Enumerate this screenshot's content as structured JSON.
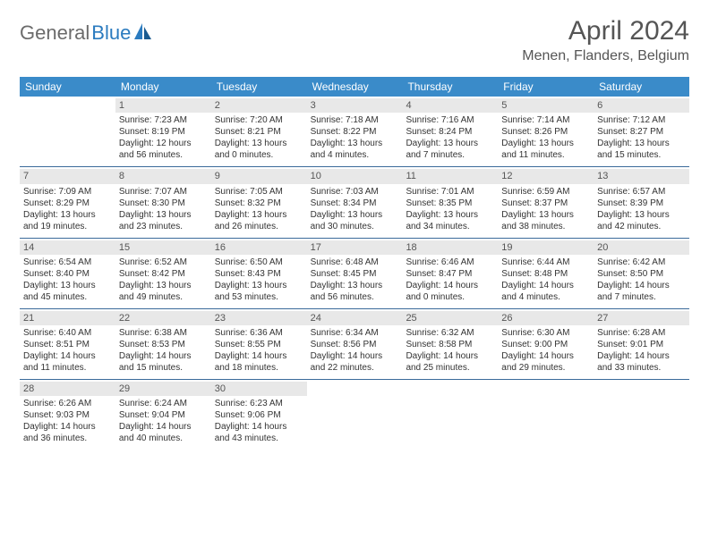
{
  "logo": {
    "text1": "General",
    "text2": "Blue"
  },
  "title": "April 2024",
  "location": "Menen, Flanders, Belgium",
  "colors": {
    "header_bg": "#3a8bc9",
    "header_text": "#ffffff",
    "border": "#3a6a9a",
    "daynum_bg": "#e8e8e8",
    "body_text": "#333333",
    "logo_gray": "#6b6b6b",
    "logo_blue": "#2b7bbf"
  },
  "typography": {
    "title_fontsize": 30,
    "location_fontsize": 16,
    "dayheader_fontsize": 12,
    "cell_fontsize": 10
  },
  "day_labels": [
    "Sunday",
    "Monday",
    "Tuesday",
    "Wednesday",
    "Thursday",
    "Friday",
    "Saturday"
  ],
  "weeks": [
    [
      {
        "n": "",
        "sr": "",
        "ss": "",
        "dl1": "",
        "dl2": "",
        "empty": true
      },
      {
        "n": "1",
        "sr": "Sunrise: 7:23 AM",
        "ss": "Sunset: 8:19 PM",
        "dl1": "Daylight: 12 hours",
        "dl2": "and 56 minutes."
      },
      {
        "n": "2",
        "sr": "Sunrise: 7:20 AM",
        "ss": "Sunset: 8:21 PM",
        "dl1": "Daylight: 13 hours",
        "dl2": "and 0 minutes."
      },
      {
        "n": "3",
        "sr": "Sunrise: 7:18 AM",
        "ss": "Sunset: 8:22 PM",
        "dl1": "Daylight: 13 hours",
        "dl2": "and 4 minutes."
      },
      {
        "n": "4",
        "sr": "Sunrise: 7:16 AM",
        "ss": "Sunset: 8:24 PM",
        "dl1": "Daylight: 13 hours",
        "dl2": "and 7 minutes."
      },
      {
        "n": "5",
        "sr": "Sunrise: 7:14 AM",
        "ss": "Sunset: 8:26 PM",
        "dl1": "Daylight: 13 hours",
        "dl2": "and 11 minutes."
      },
      {
        "n": "6",
        "sr": "Sunrise: 7:12 AM",
        "ss": "Sunset: 8:27 PM",
        "dl1": "Daylight: 13 hours",
        "dl2": "and 15 minutes."
      }
    ],
    [
      {
        "n": "7",
        "sr": "Sunrise: 7:09 AM",
        "ss": "Sunset: 8:29 PM",
        "dl1": "Daylight: 13 hours",
        "dl2": "and 19 minutes."
      },
      {
        "n": "8",
        "sr": "Sunrise: 7:07 AM",
        "ss": "Sunset: 8:30 PM",
        "dl1": "Daylight: 13 hours",
        "dl2": "and 23 minutes."
      },
      {
        "n": "9",
        "sr": "Sunrise: 7:05 AM",
        "ss": "Sunset: 8:32 PM",
        "dl1": "Daylight: 13 hours",
        "dl2": "and 26 minutes."
      },
      {
        "n": "10",
        "sr": "Sunrise: 7:03 AM",
        "ss": "Sunset: 8:34 PM",
        "dl1": "Daylight: 13 hours",
        "dl2": "and 30 minutes."
      },
      {
        "n": "11",
        "sr": "Sunrise: 7:01 AM",
        "ss": "Sunset: 8:35 PM",
        "dl1": "Daylight: 13 hours",
        "dl2": "and 34 minutes."
      },
      {
        "n": "12",
        "sr": "Sunrise: 6:59 AM",
        "ss": "Sunset: 8:37 PM",
        "dl1": "Daylight: 13 hours",
        "dl2": "and 38 minutes."
      },
      {
        "n": "13",
        "sr": "Sunrise: 6:57 AM",
        "ss": "Sunset: 8:39 PM",
        "dl1": "Daylight: 13 hours",
        "dl2": "and 42 minutes."
      }
    ],
    [
      {
        "n": "14",
        "sr": "Sunrise: 6:54 AM",
        "ss": "Sunset: 8:40 PM",
        "dl1": "Daylight: 13 hours",
        "dl2": "and 45 minutes."
      },
      {
        "n": "15",
        "sr": "Sunrise: 6:52 AM",
        "ss": "Sunset: 8:42 PM",
        "dl1": "Daylight: 13 hours",
        "dl2": "and 49 minutes."
      },
      {
        "n": "16",
        "sr": "Sunrise: 6:50 AM",
        "ss": "Sunset: 8:43 PM",
        "dl1": "Daylight: 13 hours",
        "dl2": "and 53 minutes."
      },
      {
        "n": "17",
        "sr": "Sunrise: 6:48 AM",
        "ss": "Sunset: 8:45 PM",
        "dl1": "Daylight: 13 hours",
        "dl2": "and 56 minutes."
      },
      {
        "n": "18",
        "sr": "Sunrise: 6:46 AM",
        "ss": "Sunset: 8:47 PM",
        "dl1": "Daylight: 14 hours",
        "dl2": "and 0 minutes."
      },
      {
        "n": "19",
        "sr": "Sunrise: 6:44 AM",
        "ss": "Sunset: 8:48 PM",
        "dl1": "Daylight: 14 hours",
        "dl2": "and 4 minutes."
      },
      {
        "n": "20",
        "sr": "Sunrise: 6:42 AM",
        "ss": "Sunset: 8:50 PM",
        "dl1": "Daylight: 14 hours",
        "dl2": "and 7 minutes."
      }
    ],
    [
      {
        "n": "21",
        "sr": "Sunrise: 6:40 AM",
        "ss": "Sunset: 8:51 PM",
        "dl1": "Daylight: 14 hours",
        "dl2": "and 11 minutes."
      },
      {
        "n": "22",
        "sr": "Sunrise: 6:38 AM",
        "ss": "Sunset: 8:53 PM",
        "dl1": "Daylight: 14 hours",
        "dl2": "and 15 minutes."
      },
      {
        "n": "23",
        "sr": "Sunrise: 6:36 AM",
        "ss": "Sunset: 8:55 PM",
        "dl1": "Daylight: 14 hours",
        "dl2": "and 18 minutes."
      },
      {
        "n": "24",
        "sr": "Sunrise: 6:34 AM",
        "ss": "Sunset: 8:56 PM",
        "dl1": "Daylight: 14 hours",
        "dl2": "and 22 minutes."
      },
      {
        "n": "25",
        "sr": "Sunrise: 6:32 AM",
        "ss": "Sunset: 8:58 PM",
        "dl1": "Daylight: 14 hours",
        "dl2": "and 25 minutes."
      },
      {
        "n": "26",
        "sr": "Sunrise: 6:30 AM",
        "ss": "Sunset: 9:00 PM",
        "dl1": "Daylight: 14 hours",
        "dl2": "and 29 minutes."
      },
      {
        "n": "27",
        "sr": "Sunrise: 6:28 AM",
        "ss": "Sunset: 9:01 PM",
        "dl1": "Daylight: 14 hours",
        "dl2": "and 33 minutes."
      }
    ],
    [
      {
        "n": "28",
        "sr": "Sunrise: 6:26 AM",
        "ss": "Sunset: 9:03 PM",
        "dl1": "Daylight: 14 hours",
        "dl2": "and 36 minutes."
      },
      {
        "n": "29",
        "sr": "Sunrise: 6:24 AM",
        "ss": "Sunset: 9:04 PM",
        "dl1": "Daylight: 14 hours",
        "dl2": "and 40 minutes."
      },
      {
        "n": "30",
        "sr": "Sunrise: 6:23 AM",
        "ss": "Sunset: 9:06 PM",
        "dl1": "Daylight: 14 hours",
        "dl2": "and 43 minutes."
      },
      {
        "n": "",
        "sr": "",
        "ss": "",
        "dl1": "",
        "dl2": "",
        "empty": true
      },
      {
        "n": "",
        "sr": "",
        "ss": "",
        "dl1": "",
        "dl2": "",
        "empty": true
      },
      {
        "n": "",
        "sr": "",
        "ss": "",
        "dl1": "",
        "dl2": "",
        "empty": true
      },
      {
        "n": "",
        "sr": "",
        "ss": "",
        "dl1": "",
        "dl2": "",
        "empty": true
      }
    ]
  ]
}
